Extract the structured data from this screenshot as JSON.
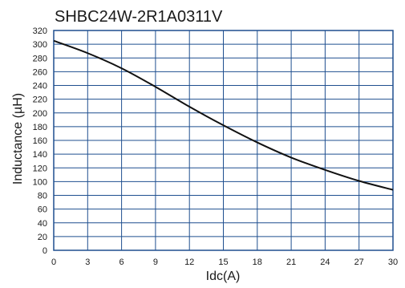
{
  "chart_data": {
    "type": "line",
    "title": "SHBC24W-2R1A0311V",
    "xlabel": "Idc(A)",
    "ylabel": "Inductance (µH)",
    "xlim": [
      0,
      30
    ],
    "ylim": [
      0,
      320
    ],
    "x_ticks": [
      0,
      3,
      6,
      9,
      12,
      15,
      18,
      21,
      24,
      27,
      30
    ],
    "y_ticks": [
      0,
      20,
      40,
      60,
      80,
      100,
      120,
      140,
      160,
      180,
      200,
      220,
      240,
      260,
      280,
      300,
      320
    ],
    "grid": true,
    "colors": {
      "grid": "#1f4f8f",
      "line": "#111111",
      "text": "#1a1a1a"
    },
    "series": [
      {
        "x": [
          0,
          3,
          6,
          9,
          12,
          15,
          18,
          21,
          24,
          27,
          30
        ],
        "y": [
          305,
          287,
          265,
          238,
          209,
          182,
          157,
          135,
          117,
          101,
          88
        ]
      }
    ]
  }
}
